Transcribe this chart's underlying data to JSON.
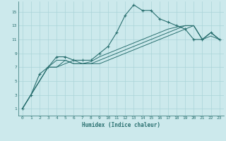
{
  "xlabel": "Humidex (Indice chaleur)",
  "ylabel": "",
  "bg_color": "#cce9ec",
  "grid_color": "#aad4d8",
  "line_color": "#2a7070",
  "marker_color": "#2a7070",
  "xlim": [
    -0.5,
    23.5
  ],
  "ylim": [
    0,
    16.5
  ],
  "xticks": [
    0,
    1,
    2,
    3,
    4,
    5,
    6,
    7,
    8,
    9,
    10,
    11,
    12,
    13,
    14,
    15,
    16,
    17,
    18,
    19,
    20,
    21,
    22,
    23
  ],
  "yticks": [
    1,
    3,
    5,
    7,
    9,
    11,
    13,
    15
  ],
  "series": [
    {
      "x": [
        0,
        1,
        2,
        3,
        4,
        5,
        6,
        7,
        8,
        9,
        10,
        11,
        12,
        13,
        14,
        15,
        16,
        17,
        18,
        19,
        20,
        21,
        22,
        23
      ],
      "y": [
        1,
        3,
        6,
        7,
        8.5,
        8.5,
        8,
        8,
        8,
        9,
        10,
        12,
        14.5,
        16,
        15.2,
        15.2,
        14,
        13.5,
        13,
        12.5,
        11,
        11,
        12,
        11
      ],
      "has_markers": true
    },
    {
      "x": [
        0,
        3,
        4,
        5,
        6,
        7,
        8,
        9,
        10,
        11,
        12,
        13,
        14,
        15,
        16,
        17,
        18,
        19,
        20,
        21,
        22,
        23
      ],
      "y": [
        1,
        7,
        7,
        8,
        7.5,
        7.5,
        7.5,
        8,
        8.5,
        9,
        9.5,
        10,
        10.5,
        11,
        11.5,
        12,
        12.5,
        13,
        13,
        11,
        12,
        11
      ],
      "has_markers": false
    },
    {
      "x": [
        0,
        3,
        4,
        5,
        6,
        7,
        8,
        9,
        10,
        11,
        12,
        13,
        14,
        15,
        16,
        17,
        18,
        19,
        20,
        21,
        22,
        23
      ],
      "y": [
        1,
        7,
        8,
        8,
        7.5,
        7.5,
        7.8,
        8.5,
        9,
        9.5,
        10,
        10.5,
        11,
        11.5,
        12,
        12.5,
        12.8,
        13,
        13,
        11,
        12,
        11
      ],
      "has_markers": false
    },
    {
      "x": [
        0,
        3,
        4,
        5,
        6,
        7,
        8,
        9,
        10,
        11,
        12,
        13,
        14,
        15,
        16,
        17,
        18,
        19,
        20,
        21,
        22,
        23
      ],
      "y": [
        1,
        7,
        7,
        7.5,
        8,
        7.5,
        7.5,
        7.5,
        8,
        8.5,
        9,
        9.5,
        10,
        10.5,
        11,
        11.5,
        12,
        12.5,
        13,
        11,
        11.5,
        11
      ],
      "has_markers": false
    }
  ]
}
